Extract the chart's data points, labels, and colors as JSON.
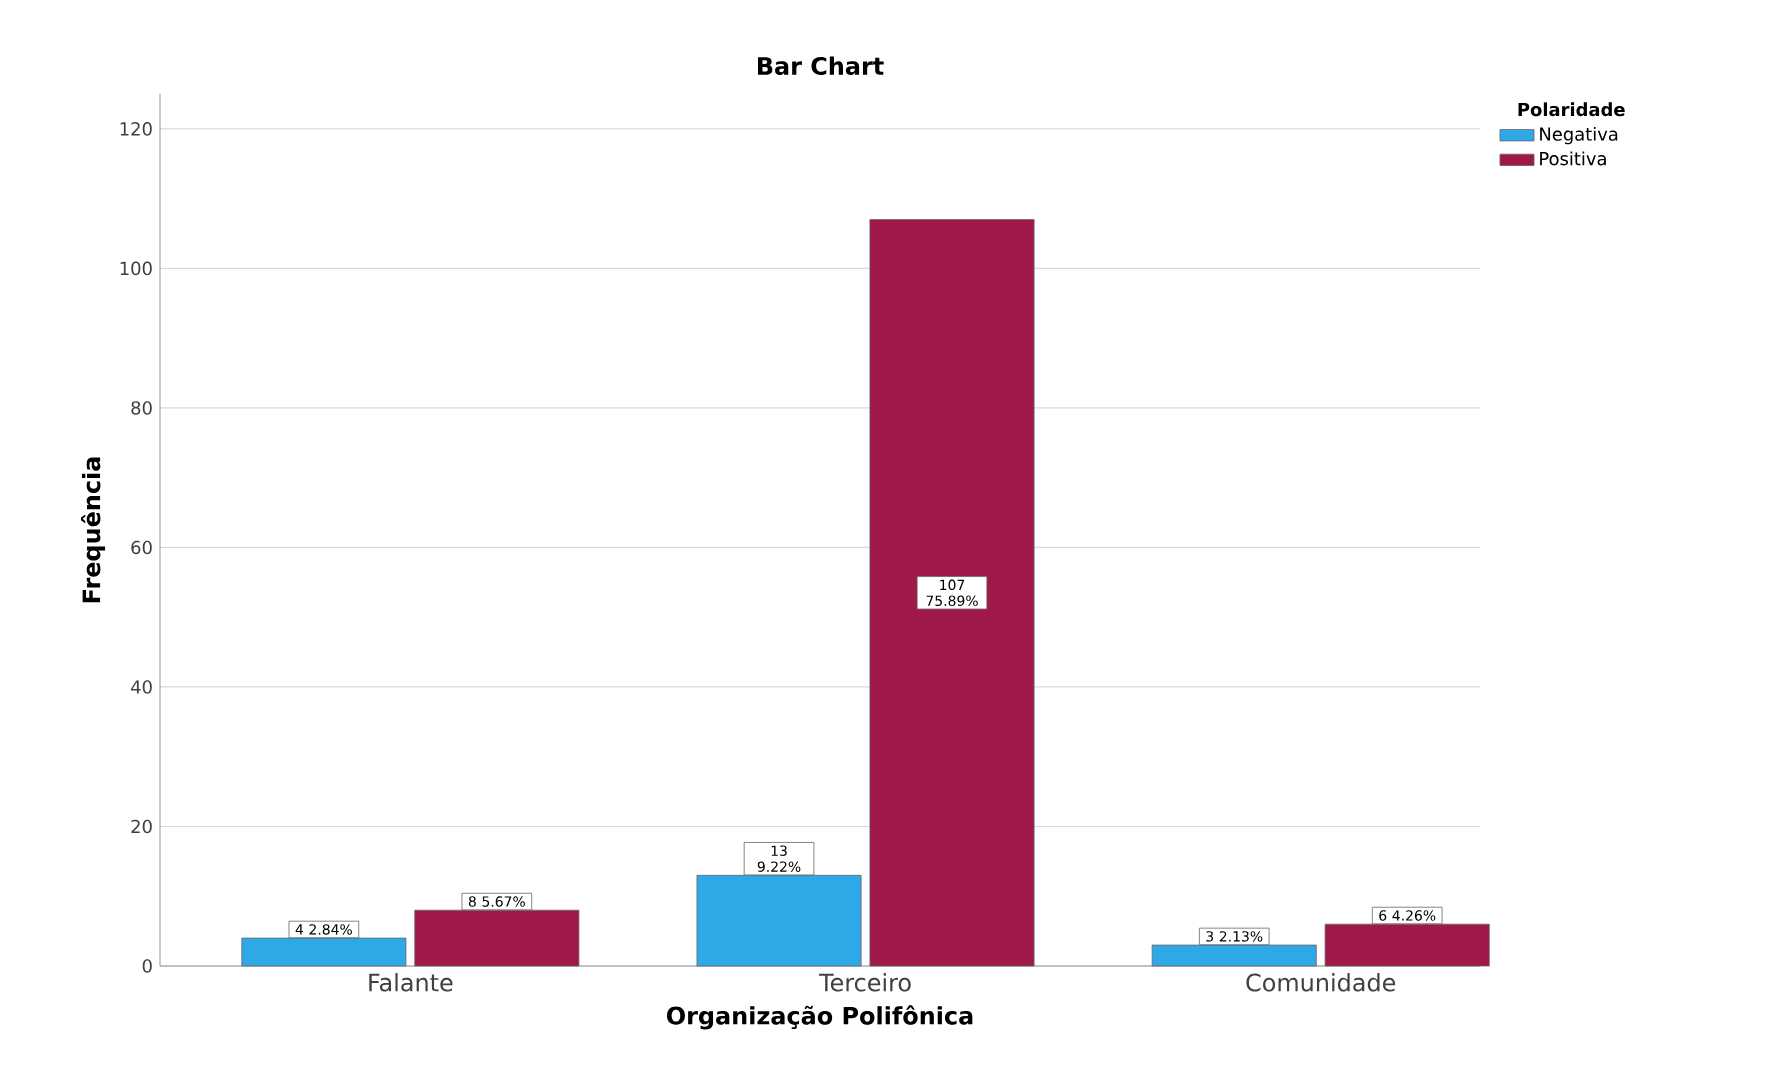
{
  "chart_data": {
    "type": "bar",
    "title": "Bar Chart",
    "xlabel": "Organização Polifônica",
    "ylabel": "Frequência",
    "legend_title": "Polaridade",
    "legend": "top right",
    "grid": "y",
    "categories": [
      "Falante",
      "Terceiro",
      "Comunidade"
    ],
    "series": [
      {
        "name": "Negativa",
        "color": "#2fa8e8",
        "values": [
          4,
          13,
          3
        ],
        "value_labels": [
          "4 2.84%",
          "13 9.22%",
          "3 2.13%"
        ]
      },
      {
        "name": "Positiva",
        "color": "#a0174a",
        "values": [
          8,
          107,
          6
        ],
        "value_labels": [
          "8 5.67%",
          "107 75.89%",
          "6 4.26%"
        ]
      }
    ],
    "ylim": [
      0,
      125
    ],
    "yticks": [
      0,
      20,
      40,
      60,
      80,
      100,
      120
    ]
  }
}
